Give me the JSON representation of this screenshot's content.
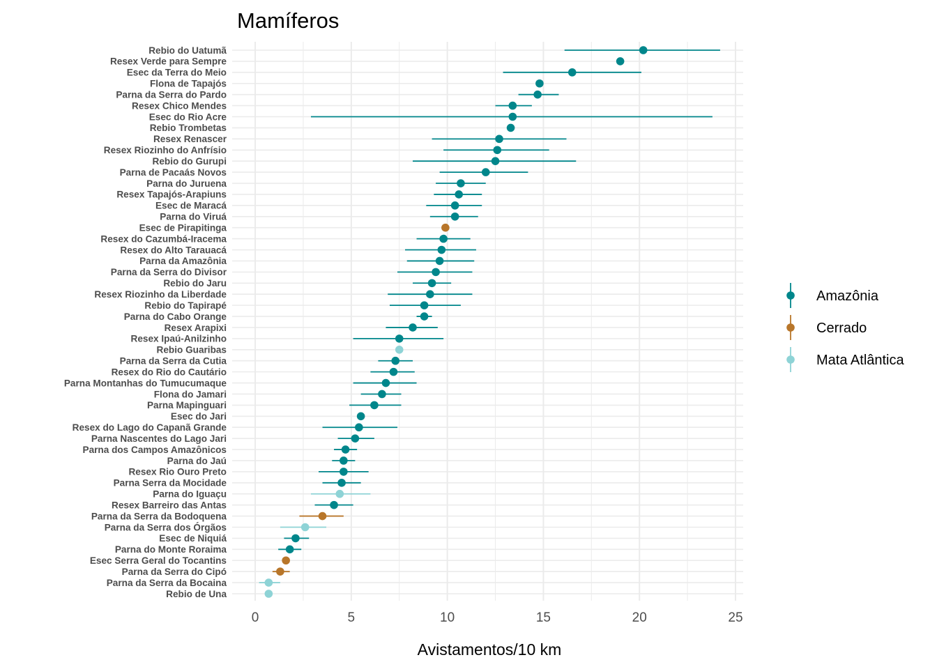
{
  "chart_data": {
    "type": "scatter",
    "subtype": "point-range",
    "title": "Mamíferos",
    "xlabel": "Avistamentos/10 km",
    "ylabel": "",
    "xlim": [
      -1.2,
      25.4
    ],
    "xticks": [
      0,
      5,
      10,
      15,
      20,
      25
    ],
    "grid": true,
    "legend": "right",
    "biomes": [
      {
        "name": "Amazônia",
        "color": "#00868B"
      },
      {
        "name": "Cerrado",
        "color": "#B8762A"
      },
      {
        "name": "Mata Atlântica",
        "color": "#8ED3D6"
      }
    ],
    "categories": [
      "Rebio do Uatumã",
      "Resex Verde para Sempre",
      "Esec da Terra do Meio",
      "Flona de Tapajós",
      "Parna da Serra do Pardo",
      "Resex Chico Mendes",
      "Esec do Rio Acre",
      "Rebio Trombetas",
      "Resex Renascer",
      "Resex Riozinho do Anfrísio",
      "Rebio do Gurupi",
      "Parna de Pacaás Novos",
      "Parna do Juruena",
      "Resex Tapajós-Arapiuns",
      "Esec de Maracá",
      "Parna do Viruá",
      "Esec de Pirapitinga",
      "Resex do Cazumbá-Iracema",
      "Resex do Alto Tarauacá",
      "Parna da Amazônia",
      "Parna da Serra do Divisor",
      "Rebio do Jaru",
      "Resex Riozinho da Liberdade",
      "Rebio do Tapirapé",
      "Parna do Cabo Orange",
      "Resex Arapixi",
      "Resex Ipaú-Anilzinho",
      "Rebio Guaribas",
      "Parna da Serra da Cutia",
      "Resex do Rio do Cautário",
      "Parna Montanhas do Tumucumaque",
      "Flona do Jamari",
      "Parna Mapinguari",
      "Esec do Jari",
      "Resex do Lago do Capanã Grande",
      "Parna Nascentes do Lago Jari",
      "Parna dos Campos Amazônicos",
      "Parna do Jaú",
      "Resex Rio Ouro Preto",
      "Parna Serra da Mocidade",
      "Parna do Iguaçu",
      "Resex Barreiro das Antas",
      "Parna da Serra da Bodoquena",
      "Parna da Serra dos Órgãos",
      "Esec de Niquiá",
      "Parna do Monte Roraima",
      "Esec Serra Geral do Tocantins",
      "Parna da Serra do Cipó",
      "Parna da Serra da Bocaina",
      "Rebio de Una"
    ],
    "points": [
      {
        "mean": 20.2,
        "low": 16.1,
        "high": 24.2,
        "biome": 0
      },
      {
        "mean": 19.0,
        "low": 19.0,
        "high": 19.0,
        "biome": 0
      },
      {
        "mean": 16.5,
        "low": 12.9,
        "high": 20.1,
        "biome": 0
      },
      {
        "mean": 14.8,
        "low": 14.8,
        "high": 14.8,
        "biome": 0
      },
      {
        "mean": 14.7,
        "low": 13.7,
        "high": 15.8,
        "biome": 0
      },
      {
        "mean": 13.4,
        "low": 12.5,
        "high": 14.4,
        "biome": 0
      },
      {
        "mean": 13.4,
        "low": 2.9,
        "high": 23.8,
        "biome": 0
      },
      {
        "mean": 13.3,
        "low": 13.3,
        "high": 13.3,
        "biome": 0
      },
      {
        "mean": 12.7,
        "low": 9.2,
        "high": 16.2,
        "biome": 0
      },
      {
        "mean": 12.6,
        "low": 9.8,
        "high": 15.3,
        "biome": 0
      },
      {
        "mean": 12.5,
        "low": 8.2,
        "high": 16.7,
        "biome": 0
      },
      {
        "mean": 12.0,
        "low": 9.6,
        "high": 14.2,
        "biome": 0
      },
      {
        "mean": 10.7,
        "low": 9.4,
        "high": 12.0,
        "biome": 0
      },
      {
        "mean": 10.6,
        "low": 9.3,
        "high": 11.8,
        "biome": 0
      },
      {
        "mean": 10.4,
        "low": 8.9,
        "high": 11.8,
        "biome": 0
      },
      {
        "mean": 10.4,
        "low": 9.1,
        "high": 11.6,
        "biome": 0
      },
      {
        "mean": 9.9,
        "low": 9.9,
        "high": 9.9,
        "biome": 1
      },
      {
        "mean": 9.8,
        "low": 8.4,
        "high": 11.2,
        "biome": 0
      },
      {
        "mean": 9.7,
        "low": 7.8,
        "high": 11.5,
        "biome": 0
      },
      {
        "mean": 9.6,
        "low": 7.9,
        "high": 11.4,
        "biome": 0
      },
      {
        "mean": 9.4,
        "low": 7.4,
        "high": 11.3,
        "biome": 0
      },
      {
        "mean": 9.2,
        "low": 8.2,
        "high": 10.2,
        "biome": 0
      },
      {
        "mean": 9.1,
        "low": 6.9,
        "high": 11.3,
        "biome": 0
      },
      {
        "mean": 8.8,
        "low": 7.0,
        "high": 10.7,
        "biome": 0
      },
      {
        "mean": 8.8,
        "low": 8.4,
        "high": 9.2,
        "biome": 0
      },
      {
        "mean": 8.2,
        "low": 6.8,
        "high": 9.5,
        "biome": 0
      },
      {
        "mean": 7.5,
        "low": 5.1,
        "high": 9.8,
        "biome": 0
      },
      {
        "mean": 7.5,
        "low": 7.5,
        "high": 7.5,
        "biome": 2
      },
      {
        "mean": 7.3,
        "low": 6.4,
        "high": 8.2,
        "biome": 0
      },
      {
        "mean": 7.2,
        "low": 6.0,
        "high": 8.3,
        "biome": 0
      },
      {
        "mean": 6.8,
        "low": 5.1,
        "high": 8.4,
        "biome": 0
      },
      {
        "mean": 6.6,
        "low": 5.5,
        "high": 7.6,
        "biome": 0
      },
      {
        "mean": 6.2,
        "low": 4.9,
        "high": 7.6,
        "biome": 0
      },
      {
        "mean": 5.5,
        "low": 5.5,
        "high": 5.5,
        "biome": 0
      },
      {
        "mean": 5.4,
        "low": 3.5,
        "high": 7.4,
        "biome": 0
      },
      {
        "mean": 5.2,
        "low": 4.3,
        "high": 6.2,
        "biome": 0
      },
      {
        "mean": 4.7,
        "low": 4.1,
        "high": 5.3,
        "biome": 0
      },
      {
        "mean": 4.6,
        "low": 4.0,
        "high": 5.2,
        "biome": 0
      },
      {
        "mean": 4.6,
        "low": 3.3,
        "high": 5.9,
        "biome": 0
      },
      {
        "mean": 4.5,
        "low": 3.5,
        "high": 5.5,
        "biome": 0
      },
      {
        "mean": 4.4,
        "low": 2.9,
        "high": 6.0,
        "biome": 2
      },
      {
        "mean": 4.1,
        "low": 3.1,
        "high": 5.1,
        "biome": 0
      },
      {
        "mean": 3.5,
        "low": 2.3,
        "high": 4.6,
        "biome": 1
      },
      {
        "mean": 2.6,
        "low": 1.3,
        "high": 3.7,
        "biome": 2
      },
      {
        "mean": 2.1,
        "low": 1.5,
        "high": 2.8,
        "biome": 0
      },
      {
        "mean": 1.8,
        "low": 1.2,
        "high": 2.4,
        "biome": 0
      },
      {
        "mean": 1.6,
        "low": 1.6,
        "high": 1.6,
        "biome": 1
      },
      {
        "mean": 1.3,
        "low": 0.9,
        "high": 1.8,
        "biome": 1
      },
      {
        "mean": 0.7,
        "low": 0.2,
        "high": 1.3,
        "biome": 2
      },
      {
        "mean": 0.7,
        "low": 0.7,
        "high": 0.7,
        "biome": 2
      }
    ]
  }
}
